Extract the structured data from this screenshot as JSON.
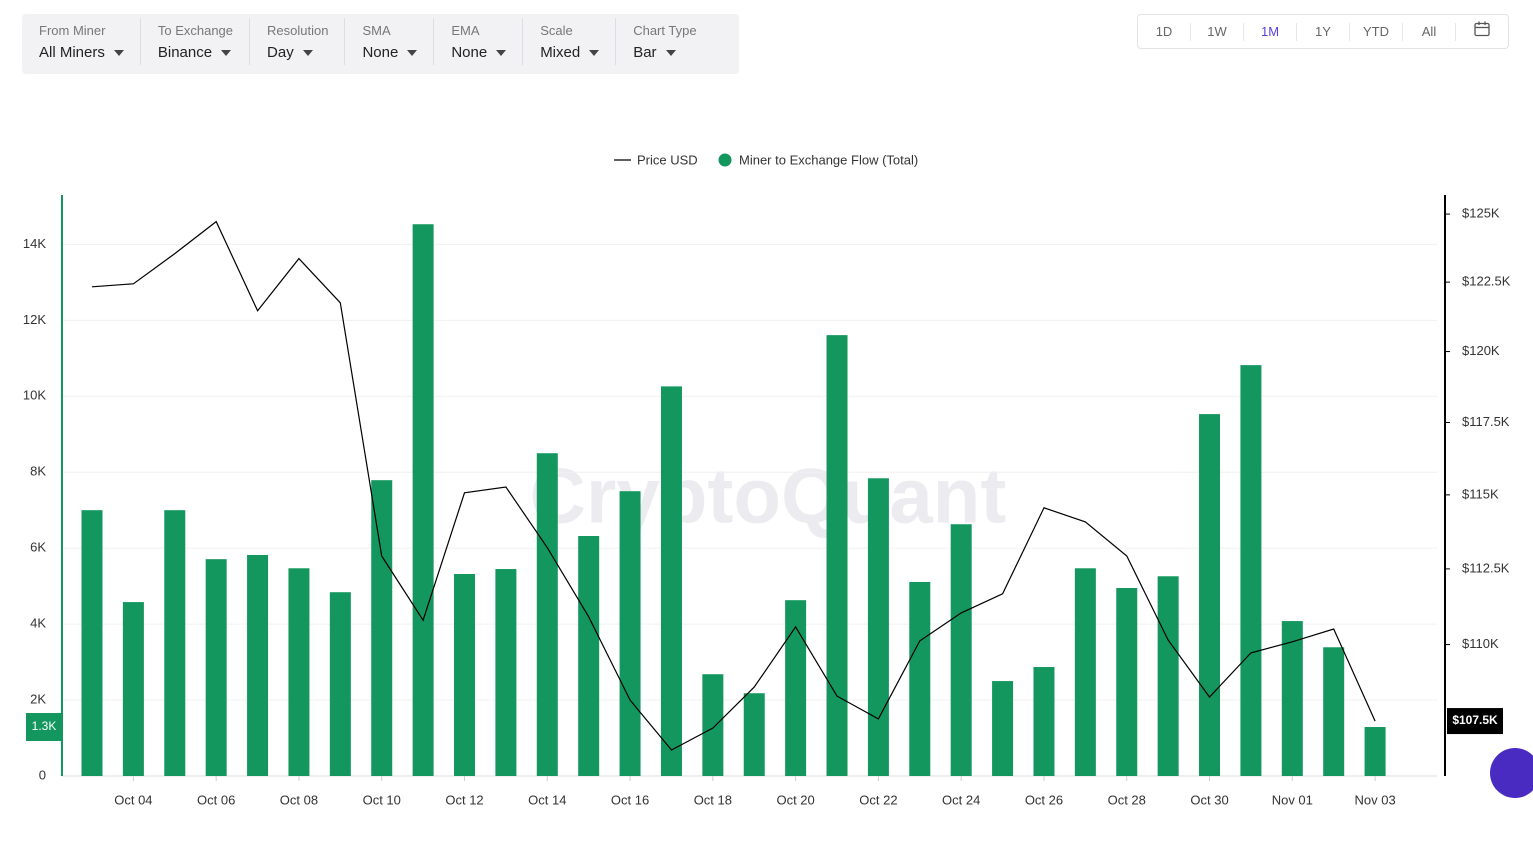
{
  "toolbar": {
    "filters": [
      {
        "label": "From Miner",
        "value": "All Miners"
      },
      {
        "label": "To Exchange",
        "value": "Binance"
      },
      {
        "label": "Resolution",
        "value": "Day"
      },
      {
        "label": "SMA",
        "value": "None"
      },
      {
        "label": "EMA",
        "value": "None"
      },
      {
        "label": "Scale",
        "value": "Mixed"
      },
      {
        "label": "Chart Type",
        "value": "Bar"
      }
    ],
    "ranges": [
      {
        "label": "1D",
        "active": false
      },
      {
        "label": "1W",
        "active": false
      },
      {
        "label": "1M",
        "active": true
      },
      {
        "label": "1Y",
        "active": false
      },
      {
        "label": "YTD",
        "active": false
      },
      {
        "label": "All",
        "active": false
      }
    ]
  },
  "chart_data": {
    "type": "combo",
    "watermark": "CryptoQuant",
    "categories": [
      null,
      "Oct 04",
      null,
      "Oct 06",
      null,
      "Oct 08",
      null,
      "Oct 10",
      null,
      "Oct 12",
      null,
      "Oct 14",
      null,
      "Oct 16",
      null,
      "Oct 18",
      null,
      "Oct 20",
      null,
      "Oct 22",
      null,
      "Oct 24",
      null,
      "Oct 26",
      null,
      "Oct 28",
      null,
      "Oct 30",
      null,
      "Nov 01",
      null,
      "Nov 03"
    ],
    "series": [
      {
        "name": "Price USD",
        "type": "line",
        "axis": "y2",
        "color": "#000000",
        "values": [
          122330,
          122440,
          123540,
          124720,
          121460,
          123360,
          121750,
          112930,
          110800,
          115070,
          115270,
          113210,
          110910,
          108200,
          106610,
          107310,
          108620,
          110580,
          108330,
          107600,
          110120,
          111040,
          111670,
          114560,
          114080,
          112930,
          110150,
          108300,
          109730,
          110090,
          110510,
          107530
        ]
      },
      {
        "name": "Miner to Exchange Flow (Total)",
        "type": "bar",
        "color": "#14975e",
        "values": [
          7000,
          4580,
          7000,
          5710,
          5820,
          5470,
          4840,
          7790,
          14530,
          5320,
          5450,
          8500,
          6320,
          7500,
          10260,
          2680,
          2180,
          4630,
          11610,
          7840,
          5110,
          6630,
          2500,
          2870,
          5470,
          4950,
          5260,
          9530,
          10820,
          4080,
          3390,
          1290
        ]
      }
    ],
    "ylim": [
      0,
      15300
    ],
    "yticks": [
      0,
      {
        "value": 2000,
        "label": "2K"
      },
      {
        "value": 4000,
        "label": "4K"
      },
      {
        "value": 6000,
        "label": "6K"
      },
      {
        "value": 8000,
        "label": "8K"
      },
      {
        "value": 10000,
        "label": "10K"
      },
      {
        "value": 12000,
        "label": "12K"
      },
      {
        "value": 14000,
        "label": "14K"
      }
    ],
    "y2lim": [
      105790,
      125710
    ],
    "y2scale": "log",
    "y2ticks": [
      {
        "value": 110000,
        "label": "$110K"
      },
      {
        "value": 112500,
        "label": "$112.5K"
      },
      {
        "value": 115000,
        "label": "$115K"
      },
      {
        "value": 117500,
        "label": "$117.5K"
      },
      {
        "value": 120000,
        "label": "$120K"
      },
      {
        "value": 122500,
        "label": "$122.5K"
      },
      {
        "value": 125000,
        "label": "$125K"
      }
    ],
    "last_labels": {
      "y": "1.3K",
      "y2": "$107.5K"
    },
    "grid": true
  }
}
